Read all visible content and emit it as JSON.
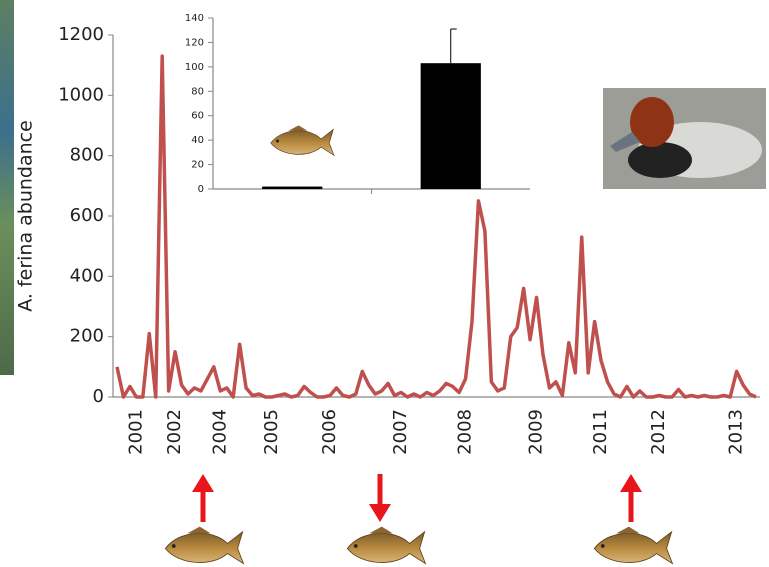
{
  "chart_data": [
    {
      "type": "line",
      "y_label": "A. ferina abundance",
      "color": "#c0504d",
      "categories": [
        null,
        null,
        null,
        "2001",
        null,
        null,
        null,
        null,
        null,
        "2002",
        null,
        null,
        null,
        null,
        null,
        null,
        "2004",
        null,
        null,
        null,
        null,
        null,
        null,
        null,
        "2005",
        null,
        null,
        null,
        null,
        null,
        null,
        null,
        null,
        "2006",
        null,
        null,
        null,
        null,
        null,
        null,
        null,
        null,
        null,
        null,
        "2007",
        null,
        null,
        null,
        null,
        null,
        null,
        null,
        null,
        null,
        "2008",
        null,
        null,
        null,
        null,
        null,
        null,
        null,
        null,
        null,
        null,
        "2009",
        null,
        null,
        null,
        null,
        null,
        null,
        null,
        null,
        null,
        "2011",
        null,
        null,
        null,
        null,
        null,
        null,
        null,
        null,
        "2012",
        null,
        null,
        null,
        null,
        null,
        null,
        null,
        null,
        null,
        null,
        null,
        "2013",
        null,
        null,
        null
      ],
      "values": [
        100,
        0,
        35,
        0,
        0,
        210,
        0,
        1130,
        20,
        150,
        40,
        10,
        30,
        20,
        60,
        100,
        20,
        30,
        0,
        175,
        30,
        5,
        10,
        0,
        0,
        5,
        10,
        0,
        5,
        35,
        15,
        0,
        0,
        5,
        30,
        5,
        0,
        10,
        85,
        40,
        10,
        20,
        45,
        5,
        15,
        0,
        10,
        0,
        15,
        5,
        20,
        45,
        35,
        15,
        60,
        250,
        650,
        550,
        50,
        20,
        30,
        200,
        230,
        360,
        190,
        330,
        140,
        30,
        50,
        5,
        180,
        80,
        530,
        80,
        250,
        120,
        50,
        10,
        0,
        35,
        0,
        20,
        0,
        0,
        5,
        0,
        0,
        25,
        0,
        5,
        0,
        5,
        0,
        0,
        5,
        0,
        85,
        40,
        10,
        0
      ],
      "ylim": [
        0,
        1200
      ],
      "yticks": [
        0,
        200,
        400,
        600,
        800,
        1000,
        1200
      ]
    },
    {
      "type": "bar",
      "color": "#000000",
      "categories": [
        null,
        null
      ],
      "values": [
        2,
        103
      ],
      "errors": [
        null,
        28
      ],
      "ylim": [
        0,
        140
      ],
      "yticks": [
        0,
        20,
        40,
        60,
        80,
        100,
        120,
        140
      ]
    }
  ]
}
